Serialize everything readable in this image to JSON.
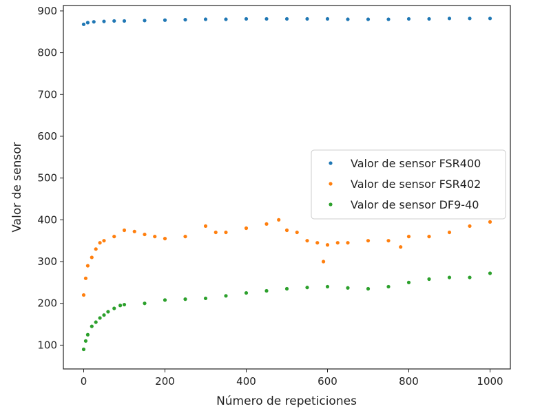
{
  "chart_data": {
    "type": "scatter",
    "title": "",
    "xlabel": "Número de repeticiones",
    "ylabel": "Valor de sensor",
    "xlim": [
      -50,
      1050
    ],
    "ylim": [
      43,
      913
    ],
    "xticks": [
      0,
      200,
      400,
      600,
      800,
      1000
    ],
    "yticks": [
      100,
      200,
      300,
      400,
      500,
      600,
      700,
      800,
      900
    ],
    "grid": false,
    "legend_position": "center-right",
    "series": [
      {
        "name": "Valor de sensor FSR400",
        "color": "#1f77b4",
        "x": [
          0,
          10,
          25,
          50,
          75,
          100,
          150,
          200,
          250,
          300,
          350,
          400,
          450,
          500,
          550,
          600,
          650,
          700,
          750,
          800,
          850,
          900,
          950,
          1000
        ],
        "y": [
          868,
          872,
          874,
          875,
          876,
          876,
          877,
          878,
          879,
          880,
          880,
          881,
          881,
          881,
          881,
          881,
          880,
          880,
          880,
          881,
          881,
          882,
          882,
          882
        ]
      },
      {
        "name": "Valor de sensor FSR402",
        "color": "#ff7f0e",
        "x": [
          0,
          5,
          10,
          20,
          30,
          40,
          50,
          75,
          100,
          125,
          150,
          175,
          200,
          250,
          300,
          325,
          350,
          400,
          450,
          480,
          500,
          525,
          550,
          575,
          590,
          600,
          625,
          650,
          700,
          750,
          780,
          800,
          850,
          900,
          950,
          1000
        ],
        "y": [
          220,
          260,
          290,
          310,
          330,
          345,
          350,
          360,
          375,
          372,
          365,
          360,
          355,
          360,
          385,
          370,
          370,
          380,
          390,
          400,
          375,
          370,
          350,
          345,
          300,
          340,
          345,
          345,
          350,
          350,
          335,
          360,
          360,
          370,
          385,
          395
        ]
      },
      {
        "name": "Valor de sensor DF9-40",
        "color": "#2ca02c",
        "x": [
          0,
          5,
          10,
          20,
          30,
          40,
          50,
          60,
          75,
          90,
          100,
          150,
          200,
          250,
          300,
          350,
          400,
          450,
          500,
          550,
          600,
          650,
          700,
          750,
          800,
          850,
          900,
          950,
          1000
        ],
        "y": [
          90,
          110,
          125,
          145,
          155,
          165,
          172,
          180,
          188,
          195,
          197,
          200,
          208,
          210,
          212,
          218,
          225,
          230,
          235,
          238,
          240,
          237,
          235,
          240,
          250,
          258,
          262,
          262,
          272
        ]
      }
    ]
  }
}
